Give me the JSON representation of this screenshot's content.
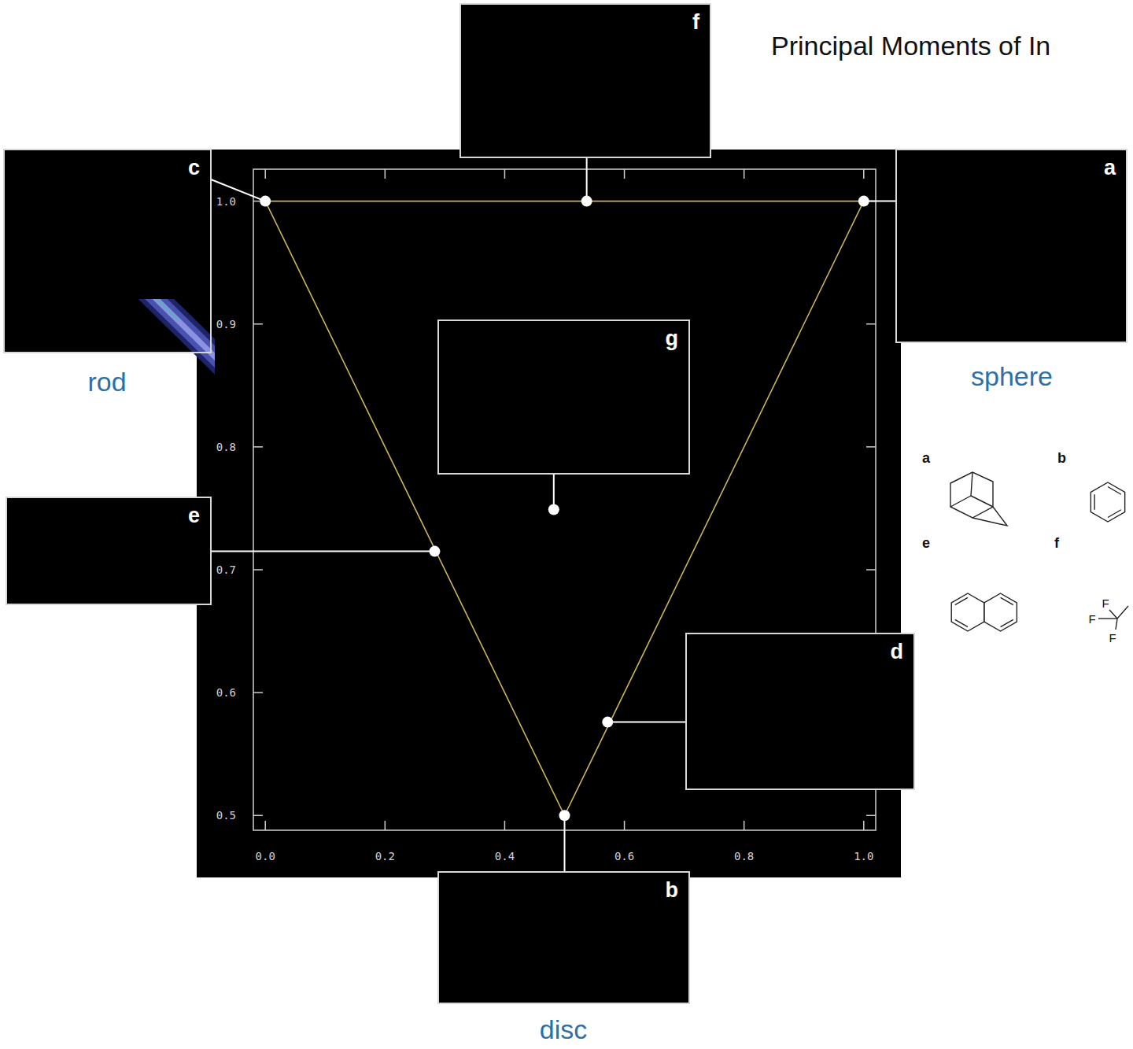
{
  "chart_data": {
    "type": "scatter",
    "title": "Principal Moments of In",
    "xlim": [
      -0.02,
      1.02
    ],
    "ylim": [
      0.488,
      1.026
    ],
    "xticks": [
      {
        "value": 0,
        "label": "0.0"
      },
      0.2,
      0.4,
      0.6,
      0.8,
      {
        "value": 1,
        "label": "1.0"
      }
    ],
    "yticks": [
      0.5,
      0.6,
      0.7,
      0.8,
      0.9,
      {
        "value": 1,
        "label": "1.0"
      }
    ],
    "series": [
      {
        "type": "line",
        "color": "#c9b458",
        "x": [
          0,
          1,
          0.5,
          0
        ],
        "values": [
          1,
          1,
          0.5,
          1
        ]
      },
      {
        "type": "scatter",
        "color": "#ffffff",
        "marker": "circle",
        "x": [
          0,
          0.537,
          1,
          0.482,
          0.283,
          0.572,
          0.5
        ],
        "values": [
          1,
          1,
          1,
          0.749,
          0.715,
          0.576,
          0.5
        ],
        "labels": [
          "c",
          "f",
          "a",
          "g",
          "e",
          "d",
          "b"
        ]
      }
    ],
    "annotations": [
      "rod",
      "sphere",
      "disc"
    ]
  },
  "structures": [
    {
      "label": "a"
    },
    {
      "label": "b"
    },
    {
      "label": "e"
    },
    {
      "label": "f",
      "atoms": [
        "F",
        "F",
        "F"
      ]
    }
  ]
}
